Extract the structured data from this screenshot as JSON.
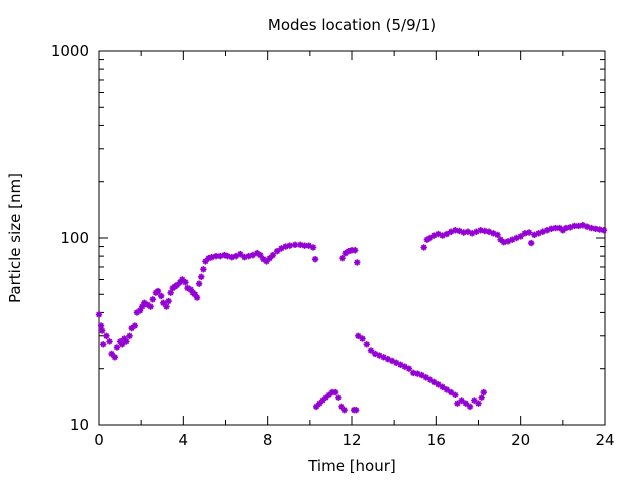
{
  "chart_data": {
    "type": "scatter",
    "title": "Modes location (5/9/1)",
    "xlabel": "Time [hour]",
    "ylabel": "Particle size [nm]",
    "xlim": [
      0,
      24
    ],
    "ylim": [
      10,
      1000
    ],
    "yscale": "log",
    "xticks": [
      "0",
      "4",
      "8",
      "12",
      "16",
      "20",
      "24"
    ],
    "yticks": [
      "10",
      "100",
      "1000"
    ],
    "grid": false,
    "legend": "none",
    "marker_color": "#9400d3",
    "series": [
      {
        "values": [
          [
            0.0,
            39.0
          ],
          [
            0.1,
            34.0
          ],
          [
            0.15,
            32.0
          ],
          [
            0.2,
            27.0
          ],
          [
            0.35,
            30.0
          ],
          [
            0.5,
            28.0
          ],
          [
            0.6,
            24.0
          ],
          [
            0.75,
            23.0
          ],
          [
            0.85,
            26.0
          ],
          [
            1.0,
            28.0
          ],
          [
            1.1,
            27.0
          ],
          [
            1.2,
            29.0
          ],
          [
            1.3,
            28.0
          ],
          [
            1.45,
            30.0
          ],
          [
            1.55,
            33.0
          ],
          [
            1.7,
            34.0
          ],
          [
            1.8,
            40.0
          ],
          [
            1.95,
            41.0
          ],
          [
            2.05,
            43.0
          ],
          [
            2.15,
            45.0
          ],
          [
            2.3,
            44.0
          ],
          [
            2.45,
            43.0
          ],
          [
            2.55,
            47.0
          ],
          [
            2.7,
            51.0
          ],
          [
            2.8,
            52.0
          ],
          [
            2.95,
            49.0
          ],
          [
            3.05,
            45.0
          ],
          [
            3.2,
            43.0
          ],
          [
            3.3,
            46.0
          ],
          [
            3.4,
            51.0
          ],
          [
            3.5,
            54.0
          ],
          [
            3.6,
            55.0
          ],
          [
            3.7,
            56.0
          ],
          [
            3.85,
            58.0
          ],
          [
            3.95,
            60.0
          ],
          [
            4.1,
            58.0
          ],
          [
            4.2,
            54.0
          ],
          [
            4.35,
            53.0
          ],
          [
            4.45,
            51.0
          ],
          [
            4.55,
            50.0
          ],
          [
            4.65,
            48.0
          ],
          [
            4.75,
            57.0
          ],
          [
            4.85,
            62.0
          ],
          [
            4.95,
            68.0
          ],
          [
            5.05,
            75.0
          ],
          [
            5.2,
            78.0
          ],
          [
            5.35,
            79.0
          ],
          [
            5.55,
            80.0
          ],
          [
            5.75,
            80.0
          ],
          [
            5.95,
            81.0
          ],
          [
            6.1,
            80.0
          ],
          [
            6.3,
            79.0
          ],
          [
            6.5,
            80.0
          ],
          [
            6.7,
            82.0
          ],
          [
            6.9,
            79.0
          ],
          [
            7.1,
            80.0
          ],
          [
            7.3,
            81.0
          ],
          [
            7.5,
            83.0
          ],
          [
            7.65,
            81.0
          ],
          [
            7.8,
            77.0
          ],
          [
            7.95,
            75.0
          ],
          [
            8.1,
            78.0
          ],
          [
            8.25,
            81.0
          ],
          [
            8.45,
            85.0
          ],
          [
            8.65,
            88.0
          ],
          [
            8.85,
            90.0
          ],
          [
            9.05,
            91.0
          ],
          [
            9.3,
            92.0
          ],
          [
            9.55,
            92.0
          ],
          [
            9.75,
            91.0
          ],
          [
            9.95,
            91.0
          ],
          [
            10.15,
            89.0
          ],
          [
            10.25,
            77.0
          ],
          [
            10.3,
            12.5
          ],
          [
            10.45,
            13.0
          ],
          [
            10.6,
            13.5
          ],
          [
            10.75,
            14.0
          ],
          [
            10.9,
            14.5
          ],
          [
            11.05,
            15.0
          ],
          [
            11.2,
            15.0
          ],
          [
            11.35,
            14.0
          ],
          [
            11.5,
            12.5
          ],
          [
            11.65,
            12.0
          ],
          [
            11.55,
            78.0
          ],
          [
            11.7,
            83.0
          ],
          [
            11.85,
            85.0
          ],
          [
            12.0,
            86.0
          ],
          [
            12.15,
            86.0
          ],
          [
            12.25,
            74.0
          ],
          [
            12.1,
            12.0
          ],
          [
            12.2,
            12.0
          ],
          [
            12.3,
            30.0
          ],
          [
            12.5,
            29.0
          ],
          [
            12.7,
            27.0
          ],
          [
            12.9,
            25.0
          ],
          [
            13.1,
            24.0
          ],
          [
            13.3,
            23.5
          ],
          [
            13.5,
            23.0
          ],
          [
            13.7,
            22.5
          ],
          [
            13.9,
            22.0
          ],
          [
            14.1,
            21.5
          ],
          [
            14.3,
            21.0
          ],
          [
            14.5,
            20.5
          ],
          [
            14.7,
            20.0
          ],
          [
            14.9,
            19.0
          ],
          [
            15.1,
            18.8
          ],
          [
            15.3,
            18.5
          ],
          [
            15.5,
            18.0
          ],
          [
            15.7,
            17.5
          ],
          [
            15.9,
            17.0
          ],
          [
            16.1,
            16.5
          ],
          [
            16.3,
            16.0
          ],
          [
            16.5,
            15.5
          ],
          [
            16.7,
            15.0
          ],
          [
            16.9,
            14.5
          ],
          [
            17.0,
            13.0
          ],
          [
            17.2,
            13.5
          ],
          [
            17.4,
            13.0
          ],
          [
            17.6,
            12.5
          ],
          [
            17.8,
            13.5
          ],
          [
            18.0,
            13.0
          ],
          [
            18.15,
            14.0
          ],
          [
            18.25,
            15.0
          ],
          [
            15.4,
            89.0
          ],
          [
            15.55,
            98.0
          ],
          [
            15.7,
            100.0
          ],
          [
            15.9,
            103.0
          ],
          [
            16.1,
            105.0
          ],
          [
            16.3,
            103.0
          ],
          [
            16.5,
            105.0
          ],
          [
            16.7,
            108.0
          ],
          [
            16.9,
            110.0
          ],
          [
            17.1,
            109.0
          ],
          [
            17.3,
            107.0
          ],
          [
            17.5,
            108.0
          ],
          [
            17.7,
            106.0
          ],
          [
            17.9,
            108.0
          ],
          [
            18.1,
            110.0
          ],
          [
            18.3,
            109.0
          ],
          [
            18.5,
            108.0
          ],
          [
            18.7,
            106.0
          ],
          [
            18.9,
            104.0
          ],
          [
            19.05,
            98.0
          ],
          [
            19.2,
            95.0
          ],
          [
            19.4,
            96.0
          ],
          [
            19.6,
            98.0
          ],
          [
            19.8,
            100.0
          ],
          [
            20.0,
            102.0
          ],
          [
            20.2,
            106.0
          ],
          [
            20.4,
            107.0
          ],
          [
            20.5,
            94.0
          ],
          [
            20.65,
            104.0
          ],
          [
            20.85,
            106.0
          ],
          [
            21.05,
            108.0
          ],
          [
            21.25,
            110.0
          ],
          [
            21.45,
            112.0
          ],
          [
            21.65,
            113.0
          ],
          [
            21.85,
            113.0
          ],
          [
            22.0,
            110.0
          ],
          [
            22.15,
            113.0
          ],
          [
            22.35,
            114.0
          ],
          [
            22.55,
            116.0
          ],
          [
            22.75,
            116.0
          ],
          [
            22.95,
            117.0
          ],
          [
            23.15,
            115.0
          ],
          [
            23.35,
            113.0
          ],
          [
            23.55,
            112.0
          ],
          [
            23.75,
            111.0
          ],
          [
            23.95,
            110.0
          ]
        ]
      }
    ]
  }
}
